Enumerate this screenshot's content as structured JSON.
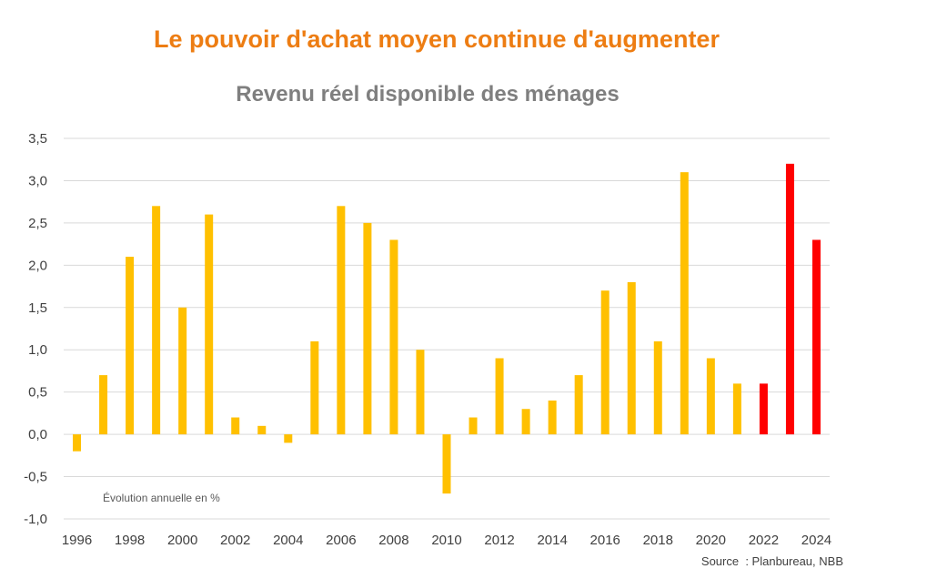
{
  "header": {
    "title": "Le pouvoir d'achat moyen continue d'augmenter",
    "subtitle": "Revenu réel disponible des ménages",
    "source": "Source  : Planbureau, NBB"
  },
  "colors": {
    "title": "#ED7D13",
    "subtitle": "#7F7F7F",
    "bar_actual": "#FFC000",
    "bar_forecast": "#FF0000",
    "grid": "#D9D9D9"
  },
  "chart_data": {
    "type": "bar",
    "title": "Revenu réel disponible des ménages",
    "annotation": "Évolution annuelle en %",
    "categories": [
      "1996",
      "1997",
      "1998",
      "1999",
      "2000",
      "2001",
      "2002",
      "2003",
      "2004",
      "2005",
      "2006",
      "2007",
      "2008",
      "2009",
      "2010",
      "2011",
      "2012",
      "2013",
      "2014",
      "2015",
      "2016",
      "2017",
      "2018",
      "2019",
      "2020",
      "2021",
      "2022",
      "2023",
      "2024"
    ],
    "x_tick_labels": [
      "1996",
      "1998",
      "2000",
      "2002",
      "2004",
      "2006",
      "2008",
      "2010",
      "2012",
      "2014",
      "2016",
      "2018",
      "2020",
      "2022",
      "2024"
    ],
    "values": [
      -0.2,
      0.7,
      2.1,
      2.7,
      1.5,
      2.6,
      0.2,
      0.1,
      -0.1,
      1.1,
      2.7,
      2.5,
      2.3,
      1.0,
      -0.7,
      0.2,
      0.9,
      0.3,
      0.4,
      0.7,
      1.7,
      1.8,
      1.1,
      3.1,
      0.9,
      0.6,
      0.6,
      3.2,
      2.3
    ],
    "highlighted_categories": [
      "2022",
      "2023",
      "2024"
    ],
    "y_ticks": [
      "-1,0",
      "-0,5",
      "0,0",
      "0,5",
      "1,0",
      "1,5",
      "2,0",
      "2,5",
      "3,0",
      "3,5"
    ],
    "ylim": [
      -1.0,
      3.5
    ],
    "grid": true,
    "legend": "none"
  }
}
